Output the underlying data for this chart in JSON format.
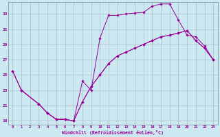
{
  "xlabel": "Windchill (Refroidissement éolien,°C)",
  "bg_color": "#cce8f0",
  "grid_color": "#aabbcc",
  "line_color": "#990099",
  "xlim": [
    -0.5,
    23.5
  ],
  "ylim": [
    18.5,
    34.5
  ],
  "xticks": [
    0,
    1,
    2,
    3,
    4,
    5,
    6,
    7,
    8,
    9,
    10,
    11,
    12,
    13,
    14,
    15,
    16,
    17,
    18,
    19,
    20,
    21,
    22,
    23
  ],
  "yticks": [
    19,
    21,
    23,
    25,
    27,
    29,
    31,
    33
  ],
  "line1_x": [
    0,
    1,
    3,
    4,
    5,
    6,
    7,
    8,
    9,
    10,
    11,
    12,
    13,
    14,
    15,
    16,
    17,
    18,
    19,
    20,
    21,
    22,
    23
  ],
  "line1_y": [
    25.5,
    23.0,
    21.2,
    20.0,
    19.2,
    19.2,
    19.0,
    24.2,
    23.0,
    29.8,
    32.8,
    32.8,
    33.0,
    33.1,
    33.2,
    34.0,
    34.3,
    34.3,
    32.2,
    30.2,
    30.0,
    28.8,
    27.0
  ],
  "line2_x": [
    1,
    3,
    4,
    5,
    6,
    7,
    8,
    9,
    10,
    11,
    12,
    13,
    14,
    15,
    16,
    17,
    18,
    19,
    20,
    21,
    22,
    23
  ],
  "line2_y": [
    23.0,
    21.2,
    20.0,
    19.2,
    19.2,
    19.0,
    21.5,
    23.5,
    25.0,
    26.5,
    27.5,
    28.0,
    28.5,
    29.0,
    29.5,
    30.0,
    30.2,
    30.5,
    30.8,
    29.5,
    28.5,
    27.0
  ],
  "line3_x": [
    0,
    1,
    3,
    4,
    5,
    6,
    7,
    8,
    9,
    10,
    11,
    12,
    13,
    14,
    15,
    16,
    17,
    18,
    19,
    20,
    21,
    22,
    23
  ],
  "line3_y": [
    25.5,
    23.0,
    21.2,
    20.0,
    19.2,
    19.2,
    19.0,
    21.5,
    23.5,
    25.0,
    26.5,
    27.5,
    28.0,
    28.5,
    29.0,
    29.5,
    30.0,
    30.2,
    30.5,
    30.8,
    29.5,
    28.5,
    27.0
  ]
}
